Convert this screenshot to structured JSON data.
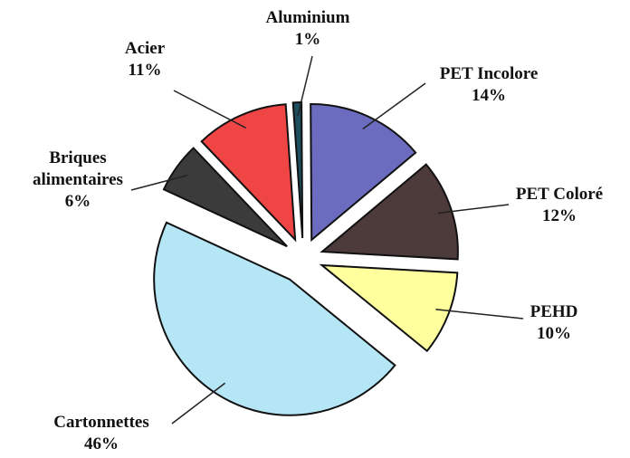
{
  "chart_data": {
    "type": "pie",
    "categories": [
      "Aluminium",
      "PET Incolore",
      "PET Coloré",
      "PEHD",
      "Cartonnettes",
      "Briques alimentaires",
      "Acier"
    ],
    "values": [
      1,
      14,
      12,
      10,
      46,
      6,
      11
    ],
    "value_labels": [
      "1%",
      "14%",
      "12%",
      "10%",
      "46%",
      "6%",
      "11%"
    ],
    "colors": [
      "#1d4f5e",
      "#6b6bbf",
      "#4d3a3a",
      "#ffff9e",
      "#b5e6f6",
      "#3b3b3b",
      "#f04545"
    ]
  }
}
